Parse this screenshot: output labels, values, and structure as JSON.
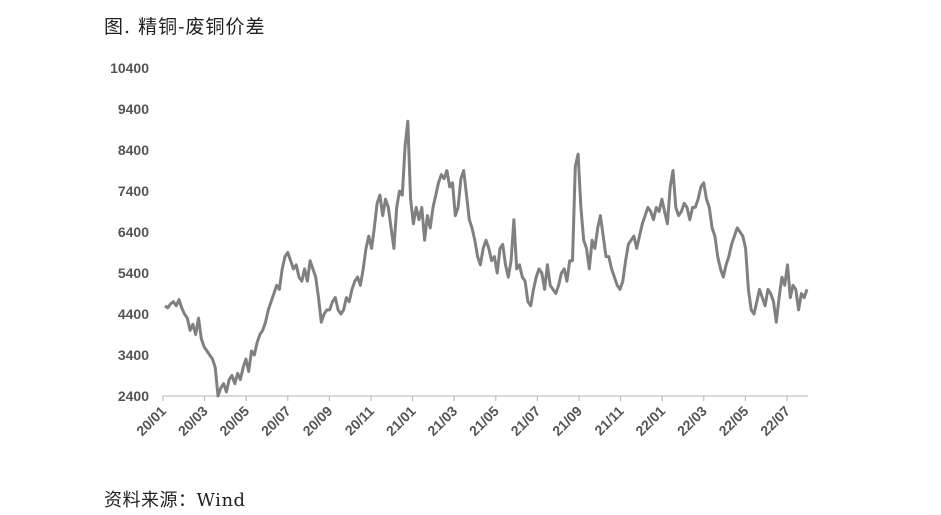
{
  "title": "图. 精铜-废铜价差",
  "source": "资料来源：Wind",
  "chart_data": {
    "type": "line",
    "title": "图. 精铜-废铜价差",
    "xlabel": "",
    "ylabel": "",
    "ylim": [
      2400,
      10400
    ],
    "yticks": [
      "2400",
      "3400",
      "4400",
      "5400",
      "6400",
      "7400",
      "8400",
      "9400",
      "10400"
    ],
    "xticks": [
      "20/01",
      "20/03",
      "20/05",
      "20/07",
      "20/09",
      "20/11",
      "21/01",
      "21/03",
      "21/05",
      "21/07",
      "21/09",
      "21/11",
      "22/01",
      "22/03",
      "22/05",
      "22/07"
    ],
    "grid": false,
    "legend": "none",
    "line_color": "#808080",
    "x_start": "2020-01",
    "x_end": "2022-08",
    "series": [
      {
        "values": [
          4600,
          4550,
          4650,
          4700,
          4600,
          4750,
          4550,
          4400,
          4300,
          4000,
          4150,
          3900,
          4300,
          3800,
          3600,
          3500,
          3400,
          3300,
          3100,
          2400,
          2600,
          2700,
          2500,
          2800,
          2900,
          2700,
          2950,
          2800,
          3100,
          3300,
          3000,
          3500,
          3400,
          3700,
          3900,
          4000,
          4200,
          4500,
          4700,
          4900,
          5100,
          5000,
          5500,
          5800,
          5900,
          5700,
          5500,
          5600,
          5300,
          5200,
          5500,
          5200,
          5700,
          5500,
          5300,
          4800,
          4200,
          4400,
          4500,
          4500,
          4700,
          4800,
          4500,
          4400,
          4500,
          4800,
          4700,
          5000,
          5200,
          5300,
          5100,
          5500,
          6000,
          6300,
          6000,
          6500,
          7100,
          7300,
          6800,
          7200,
          7000,
          6500,
          6000,
          7000,
          7400,
          7300,
          8500,
          9100,
          7200,
          6600,
          7000,
          6700,
          7000,
          6200,
          6800,
          6500,
          7000,
          7300,
          7600,
          7800,
          7700,
          7900,
          7500,
          7600,
          6800,
          7000,
          7700,
          7900,
          7300,
          6700,
          6500,
          6200,
          5800,
          5600,
          6000,
          6200,
          6000,
          5700,
          5800,
          5400,
          6000,
          6100,
          5600,
          5300,
          5700,
          6700,
          5500,
          5600,
          5300,
          5200,
          4700,
          4600,
          5000,
          5300,
          5500,
          5400,
          5000,
          5600,
          5100,
          5000,
          4900,
          5100,
          5400,
          5500,
          5200,
          5700,
          5700,
          8000,
          8300,
          7000,
          6200,
          6000,
          5500,
          6200,
          6000,
          6500,
          6800,
          6300,
          5800,
          5800,
          5500,
          5300,
          5100,
          5000,
          5200,
          5700,
          6100,
          6200,
          6300,
          6000,
          6300,
          6600,
          6800,
          7000,
          6900,
          6700,
          7000,
          6900,
          7200,
          6900,
          6600,
          7500,
          7900,
          7000,
          6800,
          6900,
          7100,
          7000,
          6700,
          7000,
          7000,
          7200,
          7500,
          7600,
          7200,
          7000,
          6500,
          6300,
          5800,
          5500,
          5300,
          5600,
          5800,
          6100,
          6300,
          6500,
          6400,
          6300,
          6000,
          5000,
          4500,
          4400,
          4700,
          5000,
          4800,
          4600,
          5000,
          4900,
          4700,
          4200,
          4800,
          5300,
          5100,
          5600,
          4800,
          5100,
          5000,
          4500,
          4900,
          4800,
          5000
        ]
      }
    ]
  }
}
